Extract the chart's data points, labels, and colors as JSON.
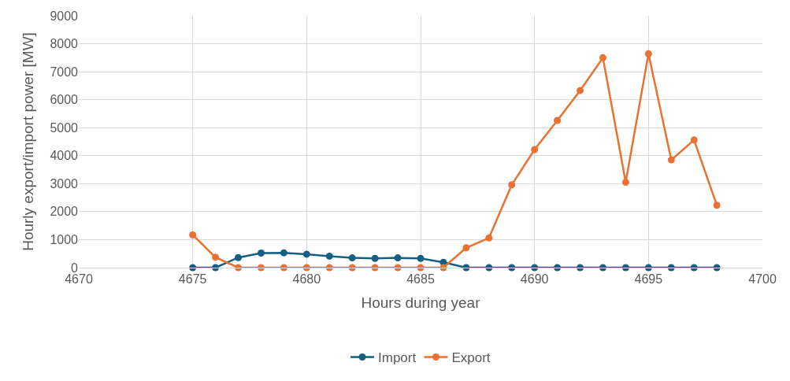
{
  "chart_data": {
    "type": "line",
    "xlabel": "Hours during year",
    "ylabel": "Hourly export/import power [MW]",
    "x": [
      4675,
      4676,
      4677,
      4678,
      4679,
      4680,
      4681,
      4682,
      4683,
      4684,
      4685,
      4686,
      4687,
      4688,
      4689,
      4690,
      4691,
      4692,
      4693,
      4694,
      4695,
      4696,
      4697,
      4698
    ],
    "series": [
      {
        "name": "Import",
        "color": "#156082",
        "values": [
          0,
          0,
          360,
          520,
          530,
          480,
          410,
          350,
          330,
          350,
          330,
          190,
          0,
          0,
          0,
          0,
          0,
          0,
          0,
          0,
          0,
          0,
          0,
          0
        ]
      },
      {
        "name": "Export",
        "color": "#e97132",
        "values": [
          1170,
          370,
          0,
          0,
          0,
          0,
          0,
          0,
          0,
          0,
          0,
          0,
          710,
          1060,
          2960,
          4220,
          5260,
          6330,
          7500,
          3050,
          7640,
          3850,
          4560,
          2230
        ]
      }
    ],
    "xlim": [
      4670,
      4700
    ],
    "xticks": [
      4670,
      4675,
      4680,
      4685,
      4690,
      4695,
      4700
    ],
    "ylim": [
      0,
      9000
    ],
    "yticks": [
      0,
      1000,
      2000,
      3000,
      4000,
      5000,
      6000,
      7000,
      8000,
      9000
    ],
    "grid": true,
    "legend": "bottom",
    "marker": "circle",
    "line_style": "solid"
  }
}
